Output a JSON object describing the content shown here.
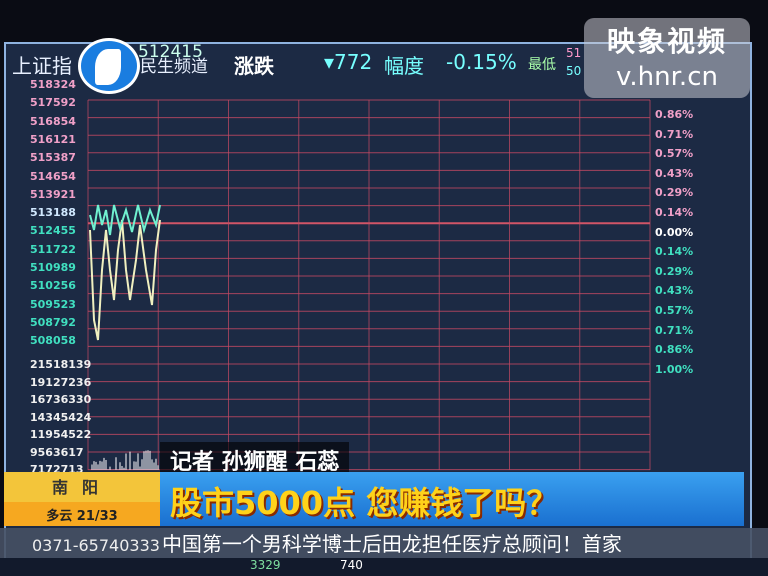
{
  "header": {
    "index_name": "上证指",
    "index_value": "512415",
    "change_label": "涨跌",
    "change_value": "▾772",
    "amplitude_label": "幅度",
    "amplitude_value": "-0.15%",
    "extra_label": "最低",
    "right_top": "51",
    "right_bottom": "50"
  },
  "price_labels": [
    "518324",
    "517592",
    "516854",
    "516121",
    "515387",
    "514654",
    "513921",
    "513188",
    "512455",
    "511722",
    "510989",
    "510256",
    "509523",
    "508792",
    "508058"
  ],
  "volume_labels": [
    "21518139",
    "19127236",
    "16736330",
    "14345424",
    "11954522",
    "9563617",
    "7172713"
  ],
  "percent_labels": [
    "0.86%",
    "0.71%",
    "0.57%",
    "0.43%",
    "0.29%",
    "0.14%",
    "0.00%",
    "0.14%",
    "0.29%",
    "0.43%",
    "0.57%",
    "0.71%",
    "0.86%",
    "1.00%"
  ],
  "channel_logo": {
    "text": "民生频道"
  },
  "watermark": {
    "line1": "映象视频",
    "line2": "v.hnr.cn"
  },
  "reporter": "记者 孙狮醒 石蕊",
  "location": {
    "city": "南阳",
    "weather": "多云 21/33"
  },
  "headline": "股市5000点  您赚钱了吗？",
  "ticker": {
    "phone": "0371-65740333",
    "text": "中国第一个男科学博士后田龙担任医疗总顾问！首家"
  },
  "bottom_strip": {
    "a": "3329",
    "b": "740"
  },
  "colors": {
    "up": "#f0a0c8",
    "down": "#40e0c0",
    "grid": "#e05a6a",
    "headline": "#ffd21a",
    "banner": "#2a88e0",
    "location_box": "#f3c53a"
  }
}
